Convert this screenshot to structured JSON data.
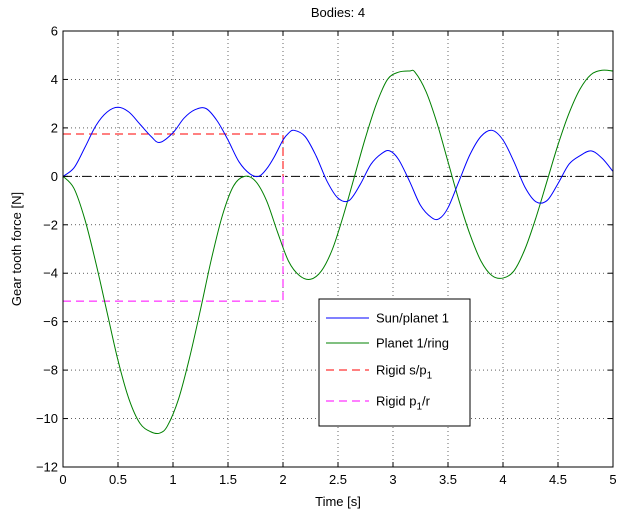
{
  "chart_data": {
    "type": "line",
    "title": "Bodies: 4",
    "xlabel": "Time [s]",
    "ylabel": "Gear tooth force [N]",
    "xlim": [
      0,
      5
    ],
    "ylim": [
      -12,
      6
    ],
    "xticks": [
      0,
      0.5,
      1,
      1.5,
      2,
      2.5,
      3,
      3.5,
      4,
      4.5,
      5
    ],
    "xtick_labels": [
      "0",
      "0.5",
      "1",
      "1.5",
      "2",
      "2.5",
      "3",
      "3.5",
      "4",
      "4.5",
      "5"
    ],
    "yticks": [
      6,
      4,
      2,
      0,
      -2,
      -4,
      -6,
      -8,
      -10,
      -12
    ],
    "ytick_labels": [
      "6",
      "4",
      "2",
      "0",
      "−2",
      "−4",
      "−6",
      "−8",
      "−10",
      "−12"
    ],
    "grid": true,
    "legend_position": "bottom-right",
    "series": [
      {
        "name": "Sun/planet 1",
        "color": "#0000ff",
        "style": "solid",
        "x": [
          0,
          0.1,
          0.2,
          0.3,
          0.4,
          0.5,
          0.6,
          0.7,
          0.8,
          0.88,
          1.0,
          1.1,
          1.2,
          1.3,
          1.4,
          1.5,
          1.6,
          1.7,
          1.78,
          1.85,
          1.92,
          2.0,
          2.05,
          2.1,
          2.2,
          2.3,
          2.4,
          2.5,
          2.6,
          2.7,
          2.8,
          2.9,
          2.97,
          3.05,
          3.15,
          3.25,
          3.35,
          3.42,
          3.5,
          3.6,
          3.7,
          3.8,
          3.9,
          4.0,
          4.1,
          4.2,
          4.3,
          4.4,
          4.5,
          4.6,
          4.7,
          4.8,
          4.9,
          5.0
        ],
        "y": [
          0,
          0.35,
          1.2,
          2.1,
          2.65,
          2.85,
          2.65,
          2.15,
          1.65,
          1.4,
          1.8,
          2.4,
          2.75,
          2.8,
          2.3,
          1.5,
          0.6,
          0.1,
          0.0,
          0.3,
          0.8,
          1.5,
          1.78,
          1.9,
          1.65,
          0.85,
          -0.2,
          -0.9,
          -1.0,
          -0.35,
          0.5,
          0.95,
          1.05,
          0.7,
          -0.2,
          -1.2,
          -1.7,
          -1.75,
          -1.3,
          -0.2,
          0.9,
          1.65,
          1.9,
          1.5,
          0.6,
          -0.45,
          -1.05,
          -1.0,
          -0.3,
          0.5,
          0.85,
          1.05,
          0.75,
          0.2
        ]
      },
      {
        "name": "Planet 1/ring",
        "color": "#008000",
        "style": "solid",
        "x": [
          0,
          0.1,
          0.2,
          0.3,
          0.4,
          0.5,
          0.6,
          0.7,
          0.8,
          0.88,
          0.95,
          1.05,
          1.15,
          1.25,
          1.35,
          1.45,
          1.55,
          1.65,
          1.75,
          1.85,
          1.95,
          2.05,
          2.15,
          2.25,
          2.35,
          2.45,
          2.55,
          2.65,
          2.75,
          2.85,
          2.95,
          3.05,
          3.15,
          3.2,
          3.3,
          3.4,
          3.5,
          3.6,
          3.7,
          3.8,
          3.9,
          4.0,
          4.1,
          4.2,
          4.3,
          4.4,
          4.5,
          4.6,
          4.7,
          4.8,
          4.9,
          5.0
        ],
        "y": [
          0,
          -0.5,
          -1.8,
          -3.6,
          -5.6,
          -7.6,
          -9.2,
          -10.2,
          -10.55,
          -10.6,
          -10.3,
          -9.2,
          -7.5,
          -5.5,
          -3.4,
          -1.6,
          -0.4,
          0.0,
          -0.2,
          -1.0,
          -2.3,
          -3.5,
          -4.1,
          -4.25,
          -3.9,
          -3.0,
          -1.6,
          0.0,
          1.6,
          3.0,
          4.0,
          4.3,
          4.35,
          4.3,
          3.5,
          2.2,
          0.6,
          -1.0,
          -2.4,
          -3.5,
          -4.1,
          -4.2,
          -3.9,
          -3.0,
          -1.7,
          -0.2,
          1.3,
          2.6,
          3.6,
          4.2,
          4.38,
          4.35
        ]
      },
      {
        "name": "Rigid s/p1",
        "color": "#ff0000",
        "style": "dashed",
        "x": [
          0,
          2,
          2
        ],
        "y": [
          1.75,
          1.75,
          0
        ]
      },
      {
        "name": "Rigid p1/r",
        "color": "#ff00ff",
        "style": "dashed",
        "x": [
          0,
          2,
          2
        ],
        "y": [
          -5.15,
          -5.15,
          0
        ]
      },
      {
        "name": "",
        "color": "#000000",
        "style": "dashdot",
        "x": [
          0,
          5
        ],
        "y": [
          0,
          0
        ]
      }
    ],
    "legend": [
      {
        "label": "Sun/planet 1",
        "sub": "",
        "tail": "",
        "color": "#0000ff",
        "style": "solid"
      },
      {
        "label": "Planet 1/ring",
        "sub": "",
        "tail": "",
        "color": "#008000",
        "style": "solid"
      },
      {
        "label": "Rigid s/p",
        "sub": "1",
        "tail": "",
        "color": "#ff0000",
        "style": "dashed"
      },
      {
        "label": "Rigid p",
        "sub": "1",
        "tail": "/r",
        "color": "#ff00ff",
        "style": "dashed"
      }
    ]
  }
}
